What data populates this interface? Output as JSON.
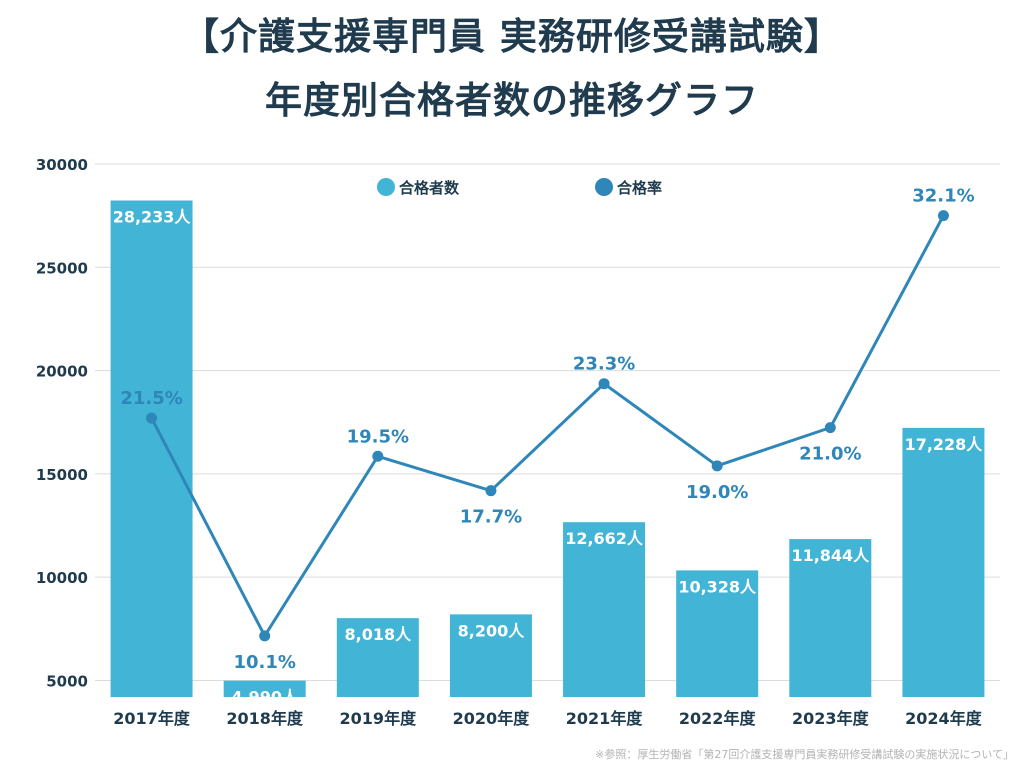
{
  "title_line1": "【介護支援専門員 実務研修受講試験】",
  "title_line2": "年度別合格者数の推移グラフ",
  "source_note": "※参照：厚生労働省「第27回介護支援専門員実務研修受講試験の実施状況について」",
  "colors": {
    "bar": "#42b4d6",
    "line": "#2e86b9",
    "grid": "#dcdcdc",
    "text": "#1f3b4d",
    "bar_label": "#ffffff"
  },
  "chart_data": {
    "type": "bar",
    "categories": [
      "2017年度",
      "2018年度",
      "2019年度",
      "2020年度",
      "2021年度",
      "2022年度",
      "2023年度",
      "2024年度"
    ],
    "ylim": [
      4200,
      30000
    ],
    "yticks": [
      5000,
      10000,
      15000,
      20000,
      25000,
      30000
    ],
    "legend_position": "top-center",
    "grid": true,
    "series": [
      {
        "name": "合格者数",
        "type": "bar",
        "axis": "left",
        "values": [
          28233,
          4990,
          8018,
          8200,
          12662,
          10328,
          11844,
          17228
        ],
        "labels": [
          "28,233人",
          "4,990人",
          "8,018人",
          "8,200人",
          "12,662人",
          "10,328人",
          "11,844人",
          "17,228人"
        ]
      },
      {
        "name": "合格率",
        "type": "line",
        "axis": "right",
        "unit": "%",
        "values": [
          21.5,
          10.1,
          19.5,
          17.7,
          23.3,
          19.0,
          21.0,
          32.1
        ],
        "labels": [
          "21.5%",
          "10.1%",
          "19.5%",
          "17.7%",
          "23.3%",
          "19.0%",
          "21.0%",
          "32.1%"
        ],
        "ylim": [
          6.9,
          34.8
        ],
        "label_positions": [
          "above",
          "below",
          "above",
          "below",
          "above",
          "below",
          "below",
          "above"
        ]
      }
    ]
  }
}
